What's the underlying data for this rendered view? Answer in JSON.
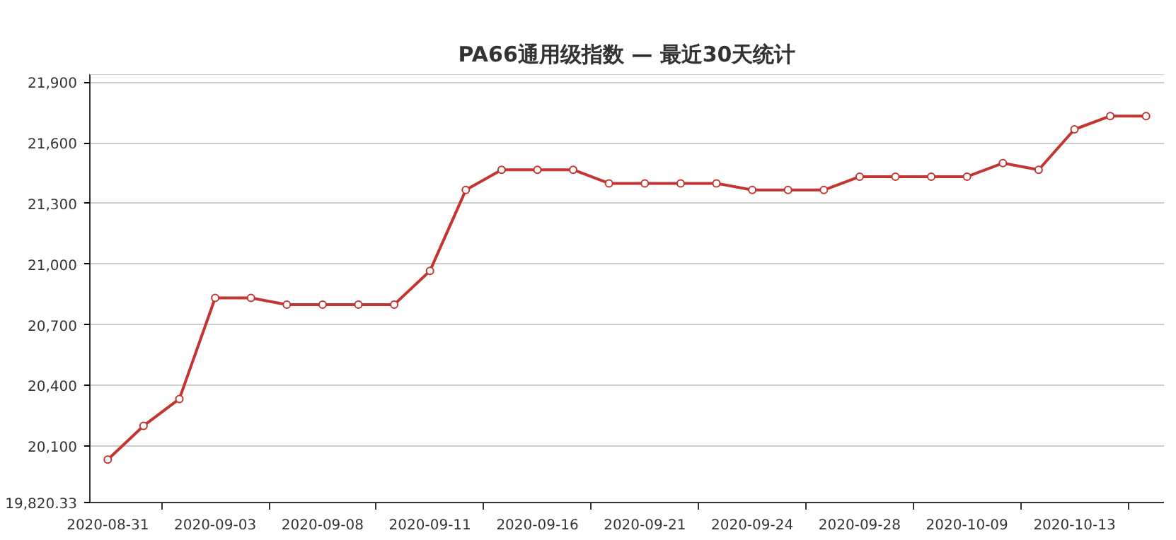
{
  "chart_data": {
    "type": "line",
    "title": "PA66通用级指数 — 最近30天统计",
    "categories": [
      "2020-08-31",
      null,
      null,
      "2020-09-03",
      null,
      null,
      "2020-09-08",
      null,
      null,
      "2020-09-11",
      null,
      null,
      "2020-09-16",
      null,
      null,
      "2020-09-21",
      null,
      null,
      "2020-09-24",
      null,
      null,
      "2020-09-28",
      null,
      null,
      "2020-10-09",
      null,
      null,
      "2020-10-13",
      null,
      null
    ],
    "series": [
      {
        "color": "#c23531",
        "values": [
          20033,
          20200,
          20333,
          20833,
          20833,
          20800,
          20800,
          20800,
          20800,
          20967,
          21367,
          21467,
          21467,
          21467,
          21400,
          21400,
          21400,
          21400,
          21367,
          21367,
          21367,
          21433,
          21433,
          21433,
          21433,
          21500,
          21467,
          21667,
          21733,
          21733
        ]
      }
    ],
    "ylim": [
      19820.33,
      21940
    ],
    "yticks": [
      {
        "value": 19820.33,
        "label": "19,820.33"
      },
      {
        "value": 20100,
        "label": "20,100"
      },
      {
        "value": 20400,
        "label": "20,400"
      },
      {
        "value": 20700,
        "label": "20,700"
      },
      {
        "value": 21000,
        "label": "21,000"
      },
      {
        "value": 21300,
        "label": "21,300"
      },
      {
        "value": 21600,
        "label": "21,600"
      },
      {
        "value": 21900,
        "label": "21,900"
      }
    ],
    "grid": "y",
    "marker": "circle",
    "line_style": "solid"
  }
}
